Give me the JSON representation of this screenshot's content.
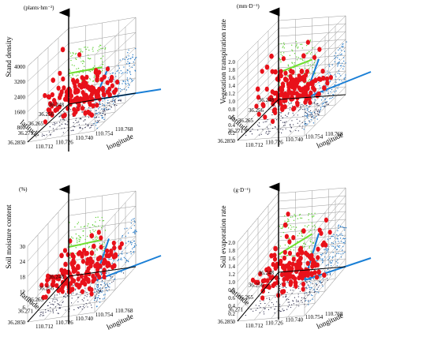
{
  "panels": [
    {
      "id": "stand-density",
      "ylabel": "Stand density",
      "yunit": "(plants·hm⁻²)",
      "zticks": [
        "0",
        "800",
        "1600",
        "2400",
        "3200",
        "4000"
      ],
      "xticks": [
        "110.712",
        "110.726",
        "110.740",
        "110.754",
        "110.768"
      ],
      "yticks": [
        "36.248",
        "36.256",
        "36.265",
        "36.271",
        "36.285"
      ],
      "xlabel": "longitude",
      "latlabel": "latitude"
    },
    {
      "id": "vegetation-transpiration",
      "ylabel": "Vegetation transpiration rate",
      "yunit": "(mm·D⁻¹)",
      "zticks": [
        "0",
        "0.2",
        "0.4",
        "0.6",
        "0.8",
        "1.0",
        "1.2",
        "1.4",
        "1.6",
        "1.8",
        "2.0"
      ],
      "xticks": [
        "110.712",
        "110.726",
        "110.740",
        "110.754",
        "110.768"
      ],
      "yticks": [
        "36.248",
        "36.256",
        "36.265",
        "36.271",
        "36.285"
      ],
      "xlabel": "longitude",
      "latlabel": "latitude"
    },
    {
      "id": "soil-moisture",
      "ylabel": "Soil moisture content",
      "yunit": "(%)",
      "zticks": [
        "0",
        "6",
        "12",
        "18",
        "24",
        "30"
      ],
      "xticks": [
        "110.712",
        "110.726",
        "110.740",
        "110.754",
        "110.768"
      ],
      "yticks": [
        "36.248",
        "36.256",
        "36.265",
        "36.271",
        "36.285"
      ],
      "xlabel": "longitude",
      "latlabel": "latitude"
    },
    {
      "id": "soil-evaporation",
      "ylabel": "Soil evaporation rate",
      "yunit": "(g·D⁻¹)",
      "zticks": [
        "0",
        "0.2",
        "0.4",
        "0.6",
        "0.8",
        "1.0",
        "1.2",
        "1.4",
        "1.6",
        "1.8",
        "2.0"
      ],
      "xticks": [
        "110.712",
        "110.726",
        "110.740",
        "110.754",
        "110.768"
      ],
      "yticks": [
        "36.248",
        "36.256",
        "36.265",
        "36.271",
        "36.285"
      ],
      "xlabel": "longitude",
      "latlabel": "latitude"
    }
  ],
  "colors": {
    "points": "#e8111a",
    "lat_projection": "#2f7fc8",
    "lon_projection": "#5fd035",
    "lat_trend": "#1a7fd6",
    "lon_trend": "#6fe02f",
    "floor_projection": "#2a2a4a",
    "grid": "#9a9a9a"
  },
  "chart_data": [
    {
      "type": "scatter",
      "title": "",
      "zlabel": "Stand density (plants·hm⁻²)",
      "xlabel": "longitude",
      "ylabel": "latitude",
      "xlim": [
        110.712,
        110.768
      ],
      "ylim": [
        36.248,
        36.285
      ],
      "zlim": [
        0,
        4000
      ],
      "lon_trend": [
        [
          110.712,
          1620
        ],
        [
          110.74,
          1660
        ]
      ],
      "lat_trend": [
        [
          36.248,
          1650
        ],
        [
          36.285,
          620
        ]
      ],
      "points": [
        [
          110.718,
          36.262,
          1200
        ],
        [
          110.721,
          36.27,
          3600
        ],
        [
          110.724,
          36.258,
          2600
        ],
        [
          110.728,
          36.266,
          1500
        ],
        [
          110.73,
          36.274,
          1100
        ],
        [
          110.733,
          36.252,
          1300
        ],
        [
          110.736,
          36.28,
          900
        ],
        [
          110.738,
          36.262,
          2100
        ],
        [
          110.741,
          36.256,
          1700
        ],
        [
          110.744,
          36.272,
          1000
        ],
        [
          110.747,
          36.266,
          800
        ],
        [
          110.75,
          36.259,
          1400
        ],
        [
          110.753,
          36.276,
          700
        ],
        [
          110.756,
          36.263,
          1100
        ],
        [
          110.76,
          36.254,
          600
        ],
        [
          110.764,
          36.27,
          900
        ]
      ]
    },
    {
      "type": "scatter",
      "title": "",
      "zlabel": "Vegetation transpiration rate (mm·D⁻¹)",
      "xlabel": "longitude",
      "ylabel": "latitude",
      "xlim": [
        110.712,
        110.768
      ],
      "ylim": [
        36.248,
        36.285
      ],
      "zlim": [
        0,
        2.0
      ],
      "lon_trend": [
        [
          110.712,
          0.68
        ],
        [
          110.74,
          0.95
        ]
      ],
      "lat_trend": [
        [
          36.248,
          0.95
        ],
        [
          36.285,
          0.78
        ]
      ],
      "points": [
        [
          110.716,
          36.262,
          0.9
        ],
        [
          110.72,
          36.27,
          1.5
        ],
        [
          110.724,
          36.258,
          0.6
        ],
        [
          110.727,
          36.266,
          1.2
        ],
        [
          110.73,
          36.274,
          0.4
        ],
        [
          110.733,
          36.252,
          1.7
        ],
        [
          110.736,
          36.28,
          0.8
        ],
        [
          110.739,
          36.262,
          1.1
        ],
        [
          110.742,
          36.256,
          0.5
        ],
        [
          110.745,
          36.272,
          1.4
        ],
        [
          110.748,
          36.266,
          0.7
        ],
        [
          110.751,
          36.259,
          1.0
        ],
        [
          110.754,
          36.276,
          0.3
        ],
        [
          110.757,
          36.263,
          0.9
        ],
        [
          110.76,
          36.254,
          1.3
        ],
        [
          110.764,
          36.27,
          0.6
        ]
      ]
    },
    {
      "type": "scatter",
      "title": "",
      "zlabel": "Soil moisture content (%)",
      "xlabel": "longitude",
      "ylabel": "latitude",
      "xlim": [
        110.712,
        110.768
      ],
      "ylim": [
        36.248,
        36.285
      ],
      "zlim": [
        0,
        30
      ],
      "lon_trend": [
        [
          110.712,
          11.5
        ],
        [
          110.74,
          12.6
        ]
      ],
      "lat_trend": [
        [
          36.248,
          12.6
        ],
        [
          36.285,
          7.5
        ]
      ],
      "points": [
        [
          110.716,
          36.262,
          11
        ],
        [
          110.72,
          36.27,
          15
        ],
        [
          110.724,
          36.258,
          9
        ],
        [
          110.727,
          36.266,
          13
        ],
        [
          110.73,
          36.274,
          8
        ],
        [
          110.733,
          36.252,
          14
        ],
        [
          110.736,
          36.28,
          10
        ],
        [
          110.739,
          36.262,
          12
        ],
        [
          110.742,
          36.256,
          7
        ],
        [
          110.745,
          36.272,
          16
        ],
        [
          110.748,
          36.266,
          11
        ],
        [
          110.751,
          36.259,
          9
        ],
        [
          110.754,
          36.276,
          6
        ],
        [
          110.757,
          36.263,
          12
        ],
        [
          110.76,
          36.254,
          28
        ],
        [
          110.764,
          36.27,
          8
        ]
      ]
    },
    {
      "type": "scatter",
      "title": "",
      "zlabel": "Soil evaporation rate (g·D⁻¹)",
      "xlabel": "longitude",
      "ylabel": "latitude",
      "xlim": [
        110.712,
        110.768
      ],
      "ylim": [
        36.248,
        36.285
      ],
      "zlim": [
        0,
        2.0
      ],
      "lon_trend": [
        [
          110.712,
          0.45
        ],
        [
          110.74,
          0.9
        ]
      ],
      "lat_trend": [
        [
          36.248,
          0.9
        ],
        [
          36.285,
          0.42
        ]
      ],
      "points": [
        [
          110.716,
          36.262,
          0.5
        ],
        [
          110.72,
          36.27,
          0.9
        ],
        [
          110.724,
          36.258,
          0.4
        ],
        [
          110.727,
          36.266,
          1.2
        ],
        [
          110.73,
          36.274,
          0.3
        ],
        [
          110.733,
          36.252,
          0.7
        ],
        [
          110.736,
          36.28,
          0.6
        ],
        [
          110.739,
          36.262,
          1.9
        ],
        [
          110.742,
          36.256,
          0.4
        ],
        [
          110.745,
          36.272,
          1.4
        ],
        [
          110.748,
          36.266,
          0.5
        ],
        [
          110.751,
          36.259,
          0.8
        ],
        [
          110.754,
          36.276,
          0.2
        ],
        [
          110.757,
          36.263,
          0.6
        ],
        [
          110.76,
          36.254,
          0.9
        ],
        [
          110.764,
          36.27,
          0.3
        ]
      ]
    }
  ]
}
